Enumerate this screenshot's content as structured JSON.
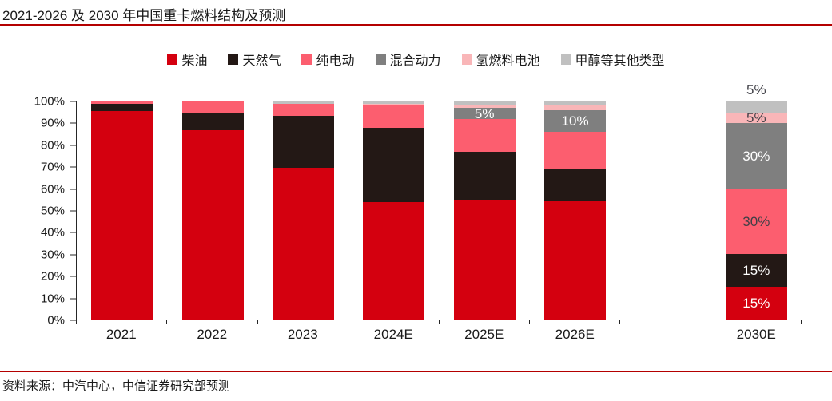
{
  "page": {
    "title": "2021-2026 及 2030 年中国重卡燃料结构及预测",
    "source": "资料来源：中汽中心，中信证券研究部预测"
  },
  "colors": {
    "rule_red": "#B40000",
    "axis": "#262626",
    "text": "#1A1A1A"
  },
  "chart_data": {
    "type": "bar",
    "stacked": true,
    "title": "2021-2026 及 2030 年中国重卡燃料结构及预测",
    "legend_position": "top",
    "grid": false,
    "ylim": [
      0,
      100
    ],
    "yticks": [
      "0%",
      "10%",
      "20%",
      "30%",
      "40%",
      "50%",
      "60%",
      "70%",
      "80%",
      "90%",
      "100%"
    ],
    "categories": [
      "2021",
      "2022",
      "2023",
      "2024E",
      "2025E",
      "2026E",
      "2030E"
    ],
    "num_slots": 8,
    "slot_of_category": [
      0,
      1,
      2,
      3,
      4,
      5,
      7
    ],
    "series": [
      {
        "id": "diesel",
        "name": "柴油",
        "color": "#D4000F",
        "values": [
          95.5,
          87,
          69.5,
          54,
          55,
          54.5,
          15
        ]
      },
      {
        "id": "natural-gas",
        "name": "天然气",
        "color": "#231815",
        "values": [
          3.5,
          7.5,
          24,
          34,
          22,
          14.5,
          15
        ]
      },
      {
        "id": "electric",
        "name": "纯电动",
        "color": "#FC5E6F",
        "values": [
          1,
          5.5,
          5.5,
          10.5,
          15,
          17,
          30
        ]
      },
      {
        "id": "hybrid",
        "name": "混合动力",
        "color": "#7F7F7F",
        "values": [
          0,
          0,
          0,
          0,
          5,
          10,
          30
        ]
      },
      {
        "id": "hydrogen",
        "name": "氢燃料电池",
        "color": "#F9B6B8",
        "values": [
          0,
          0,
          0,
          0.5,
          1.5,
          2,
          5
        ]
      },
      {
        "id": "methanol",
        "name": "甲醇等其他类型",
        "color": "#C0C0C0",
        "values": [
          0,
          0,
          1,
          1,
          1.5,
          2,
          5
        ]
      }
    ],
    "data_labels": [
      {
        "category": "2025E",
        "series": "混合动力",
        "text": "5%",
        "color": "#FFFFFF",
        "position": "inside"
      },
      {
        "category": "2026E",
        "series": "混合动力",
        "text": "10%",
        "color": "#FFFFFF",
        "position": "inside"
      },
      {
        "category": "2030E",
        "series": "柴油",
        "text": "15%",
        "color": "#FFFFFF",
        "position": "inside"
      },
      {
        "category": "2030E",
        "series": "天然气",
        "text": "15%",
        "color": "#FFFFFF",
        "position": "inside"
      },
      {
        "category": "2030E",
        "series": "纯电动",
        "text": "30%",
        "color": "#3F3F46",
        "position": "inside"
      },
      {
        "category": "2030E",
        "series": "混合动力",
        "text": "30%",
        "color": "#FFFFFF",
        "position": "inside"
      },
      {
        "category": "2030E",
        "series": "氢燃料电池",
        "text": "5%",
        "color": "#3F3F46",
        "position": "inside"
      },
      {
        "category": "2030E",
        "series": "甲醇等其他类型",
        "text": "5%",
        "color": "#3F3F46",
        "position": "above"
      }
    ]
  }
}
